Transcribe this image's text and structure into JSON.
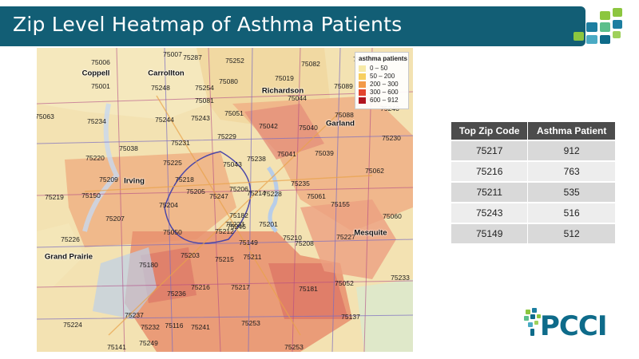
{
  "header": {
    "title": "Zip Level Heatmap of Asthma Patients"
  },
  "colors": {
    "title_bar": "#125e75",
    "table_header": "#4c4c4c",
    "brand_teal": "#0e6b8a",
    "brand_green": "#8cc63f"
  },
  "map": {
    "legend": {
      "title": "asthma patients",
      "items": [
        {
          "label": "0 – 50",
          "color": "#f6e9a6"
        },
        {
          "label": "50 – 200",
          "color": "#f7cf5f"
        },
        {
          "label": "200 – 300",
          "color": "#f39a48"
        },
        {
          "label": "300 – 600",
          "color": "#e4452e"
        },
        {
          "label": "600 – 912",
          "color": "#b0141e"
        }
      ]
    },
    "cities": [
      "Carrollton",
      "Richardson",
      "Garland",
      "Irving",
      "Grand Prairie",
      "Mesquite",
      "Coppell"
    ],
    "zip_labels": [
      "75007",
      "75287",
      "75252",
      "75082",
      "75010",
      "75006",
      "75248",
      "75080",
      "75019",
      "75001",
      "75254",
      "75081",
      "75044",
      "75089",
      "75240",
      "75051",
      "75063",
      "75234",
      "75244",
      "75243",
      "75042",
      "75040",
      "75088",
      "75230",
      "75229",
      "75231",
      "75238",
      "75041",
      "75039",
      "75038",
      "75220",
      "75225",
      "75043",
      "75062",
      "75209",
      "75218",
      "75235",
      "75205",
      "75206",
      "75214",
      "75228",
      "75061",
      "75150",
      "75155",
      "75219",
      "75247",
      "75204",
      "75182",
      "75060",
      "75207",
      "75246",
      "75223",
      "75201",
      "75212",
      "75050",
      "75226",
      "75210",
      "75149",
      "75227",
      "75208",
      "75203",
      "75215",
      "75211",
      "75180",
      "75052",
      "75224",
      "75216",
      "75217",
      "75181",
      "75233",
      "75236",
      "75237",
      "75116",
      "75232",
      "75241",
      "75253",
      "75137",
      "75249",
      "75141",
      "75253"
    ]
  },
  "table": {
    "headers": [
      "Top Zip Code",
      "Asthma Patient"
    ],
    "rows": [
      {
        "zip": "75217",
        "patients": "912"
      },
      {
        "zip": "75216",
        "patients": "763"
      },
      {
        "zip": "75211",
        "patients": "535"
      },
      {
        "zip": "75243",
        "patients": "516"
      },
      {
        "zip": "75149",
        "patients": "512"
      }
    ]
  },
  "logo": {
    "text": "PCCI"
  }
}
